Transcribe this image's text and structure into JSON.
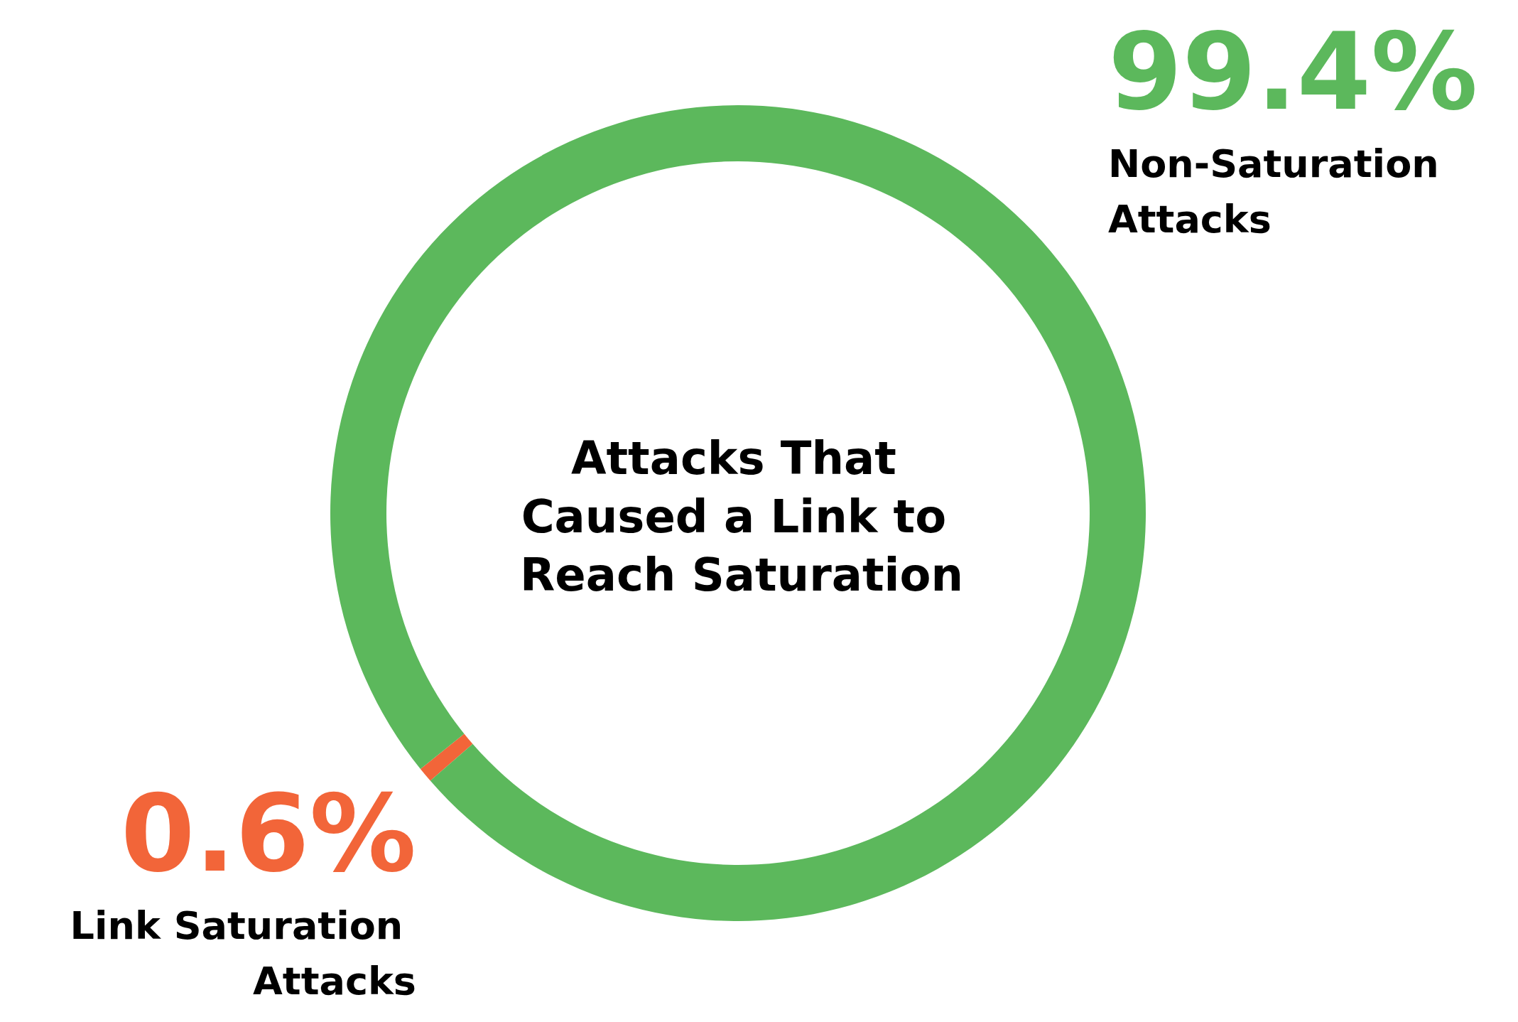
{
  "chart_data": {
    "type": "donut",
    "title": "Attacks That Caused a Link to Reach Saturation",
    "categories": [
      "Link Saturation Attacks",
      "Non-Saturation Attacks"
    ],
    "values": [
      0.6,
      99.4
    ],
    "colors": [
      "#f26539",
      "#5cb85c"
    ],
    "value_labels": [
      "0.6%",
      "99.4%"
    ],
    "legend": false
  }
}
